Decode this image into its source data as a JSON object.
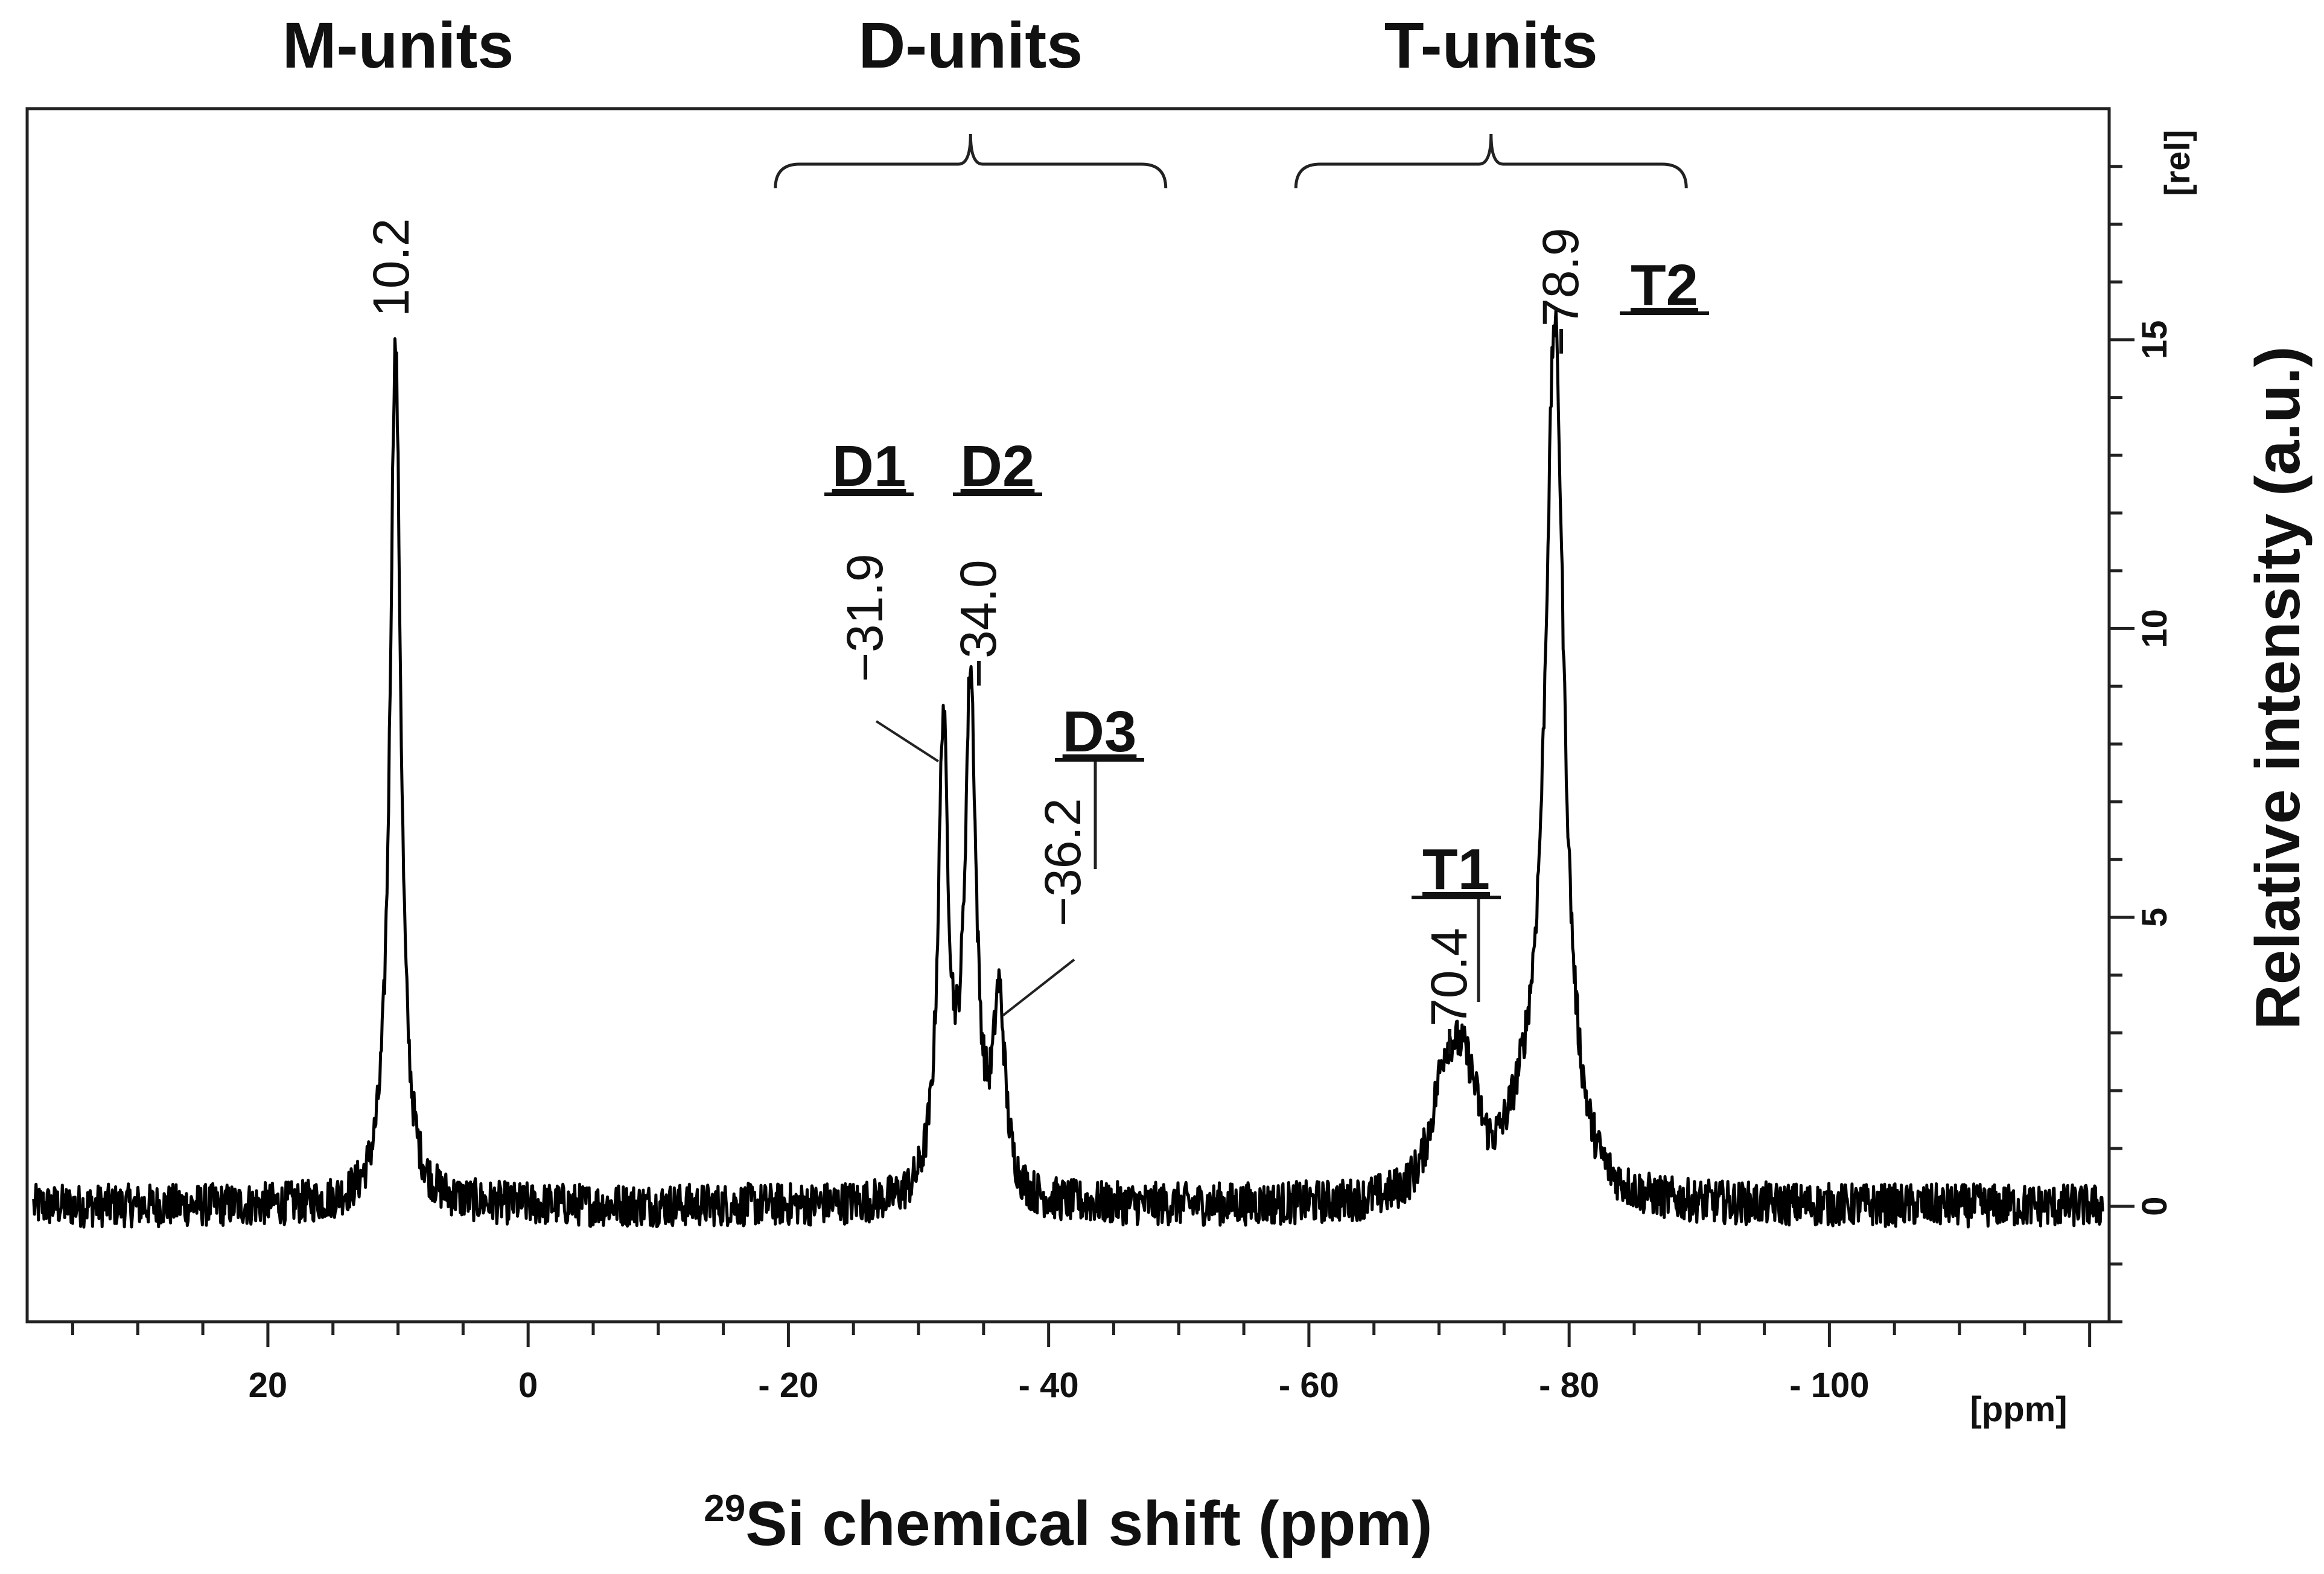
{
  "chart_data": {
    "type": "line",
    "xlabel_sup": "29",
    "xlabel": "Si chemical shift (ppm)",
    "x_unit": "[ppm]",
    "ylabel": "Relative intensity (a.u.)",
    "y_unit": "[rel]",
    "xlim": [
      38.5,
      -121.5
    ],
    "ylim": [
      -2,
      19
    ],
    "x_ticks": [
      20,
      0,
      -20,
      -40,
      -60,
      -80,
      -100
    ],
    "x_tick_labels": [
      "20",
      "0",
      "- 20",
      "- 40",
      "- 60",
      "- 80",
      "- 100"
    ],
    "y_ticks": [
      0,
      5,
      10,
      15
    ],
    "y_tick_labels": [
      "0",
      "5",
      "10",
      "15"
    ],
    "group_labels": [
      {
        "text": "M-units",
        "x": 10
      },
      {
        "text": "D-units",
        "x": -34,
        "bracket": [
          -19,
          -49
        ]
      },
      {
        "text": "T-units",
        "x": -74,
        "bracket": [
          -59,
          -89
        ]
      }
    ],
    "peaks": [
      {
        "shift": 10.2,
        "label": "10.2",
        "height": 14.9,
        "width": 0.5
      },
      {
        "shift": -31.9,
        "label": "−31.9",
        "height": 7.6,
        "width": 0.45,
        "tag": "D1"
      },
      {
        "shift": -34.0,
        "label": "−34.0",
        "height": 8.3,
        "width": 0.5,
        "tag": "D2"
      },
      {
        "shift": -36.2,
        "label": "−36.2",
        "height": 3.3,
        "width": 0.55,
        "tag": "D3"
      },
      {
        "shift": -70.4,
        "label": "−70.4",
        "height": 2.1,
        "width": 1.3,
        "tag": "T1"
      },
      {
        "shift": -78.9,
        "label": "−78.9",
        "height": 14.2,
        "width": 0.85,
        "tag": "T2"
      }
    ],
    "grid": false,
    "legend": "none"
  }
}
